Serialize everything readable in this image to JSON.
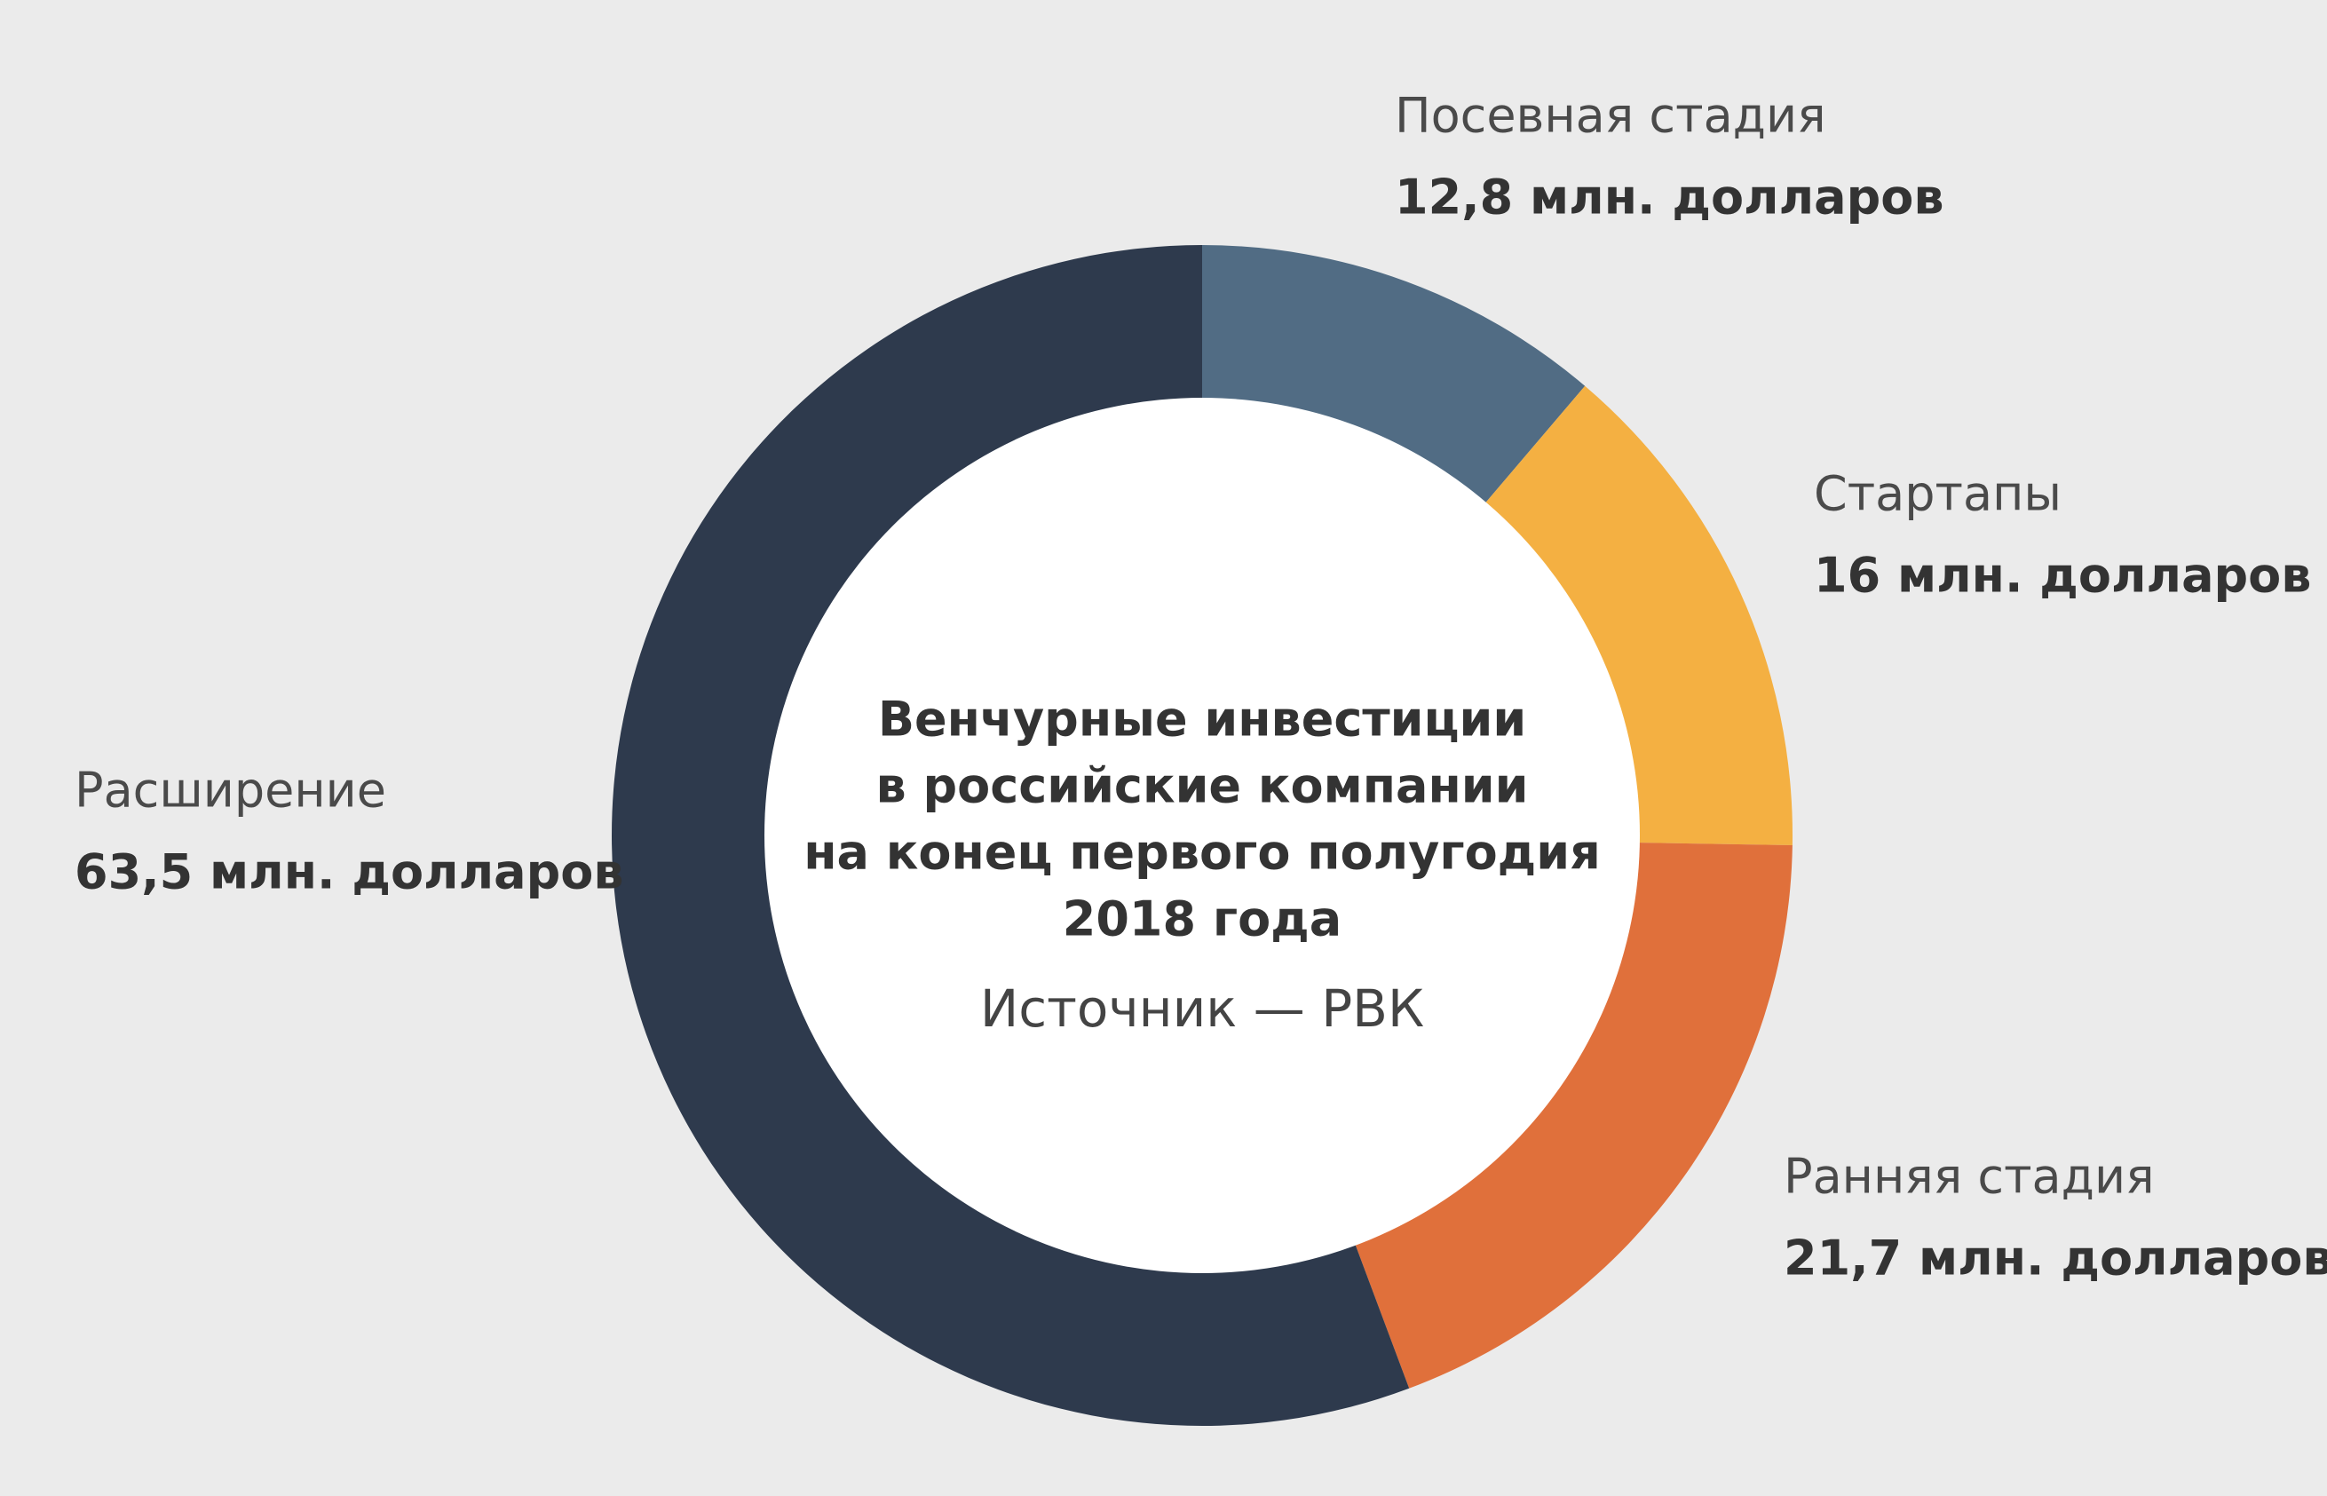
{
  "chart_data": {
    "type": "donut",
    "title": [
      "Венчурные инвестиции",
      "в российские компании",
      "на конец первого полугодия",
      "2018 года"
    ],
    "subtitle": "Источник — РВК",
    "categories": [
      "Посевная стадия",
      "Стартапы",
      "Ранняя стадия",
      "Расширение"
    ],
    "values": [
      12.8,
      16,
      21.7,
      63.5
    ],
    "value_labels": [
      "12,8 млн. долларов",
      "16 млн. долларов",
      "21,7 млн. долларов",
      "63,5 млн. долларов"
    ],
    "colors": [
      "#516c84",
      "#f4b042",
      "#e0703b",
      "#2e3a4d"
    ]
  }
}
